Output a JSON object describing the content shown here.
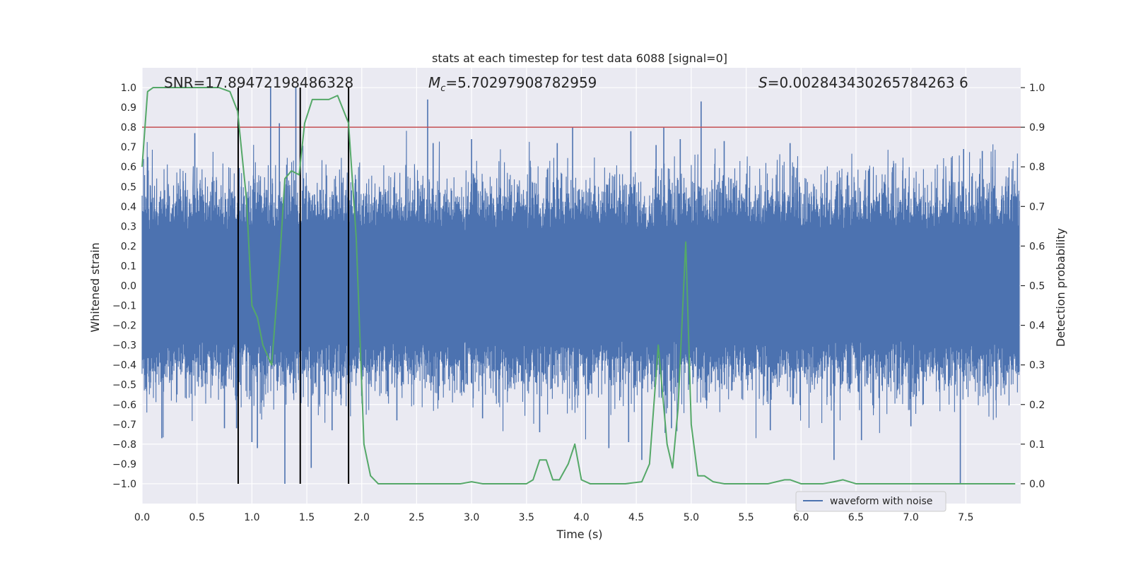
{
  "chart_data": {
    "type": "line",
    "title": "stats at each timestep for test data 6088 [signal=0]",
    "xlabel": "Time (s)",
    "ylabel_left": "Whitened strain",
    "ylabel_right": "Detection probability",
    "xlim": [
      0.0,
      8.0
    ],
    "ylim_left": [
      -1.1,
      1.1
    ],
    "ylim_right": [
      -0.05,
      1.05
    ],
    "xticks": [
      "0.0",
      "0.5",
      "1.0",
      "1.5",
      "2.0",
      "2.5",
      "3.0",
      "3.5",
      "4.0",
      "4.5",
      "5.0",
      "5.5",
      "6.0",
      "6.5",
      "7.0",
      "7.5"
    ],
    "yticks_left": [
      "1.0",
      "0.9",
      "0.8",
      "0.7",
      "0.6",
      "0.5",
      "0.4",
      "0.3",
      "0.2",
      "0.1",
      "0.0",
      "−0.1",
      "−0.2",
      "−0.3",
      "−0.4",
      "−0.5",
      "−0.6",
      "−0.7",
      "−0.8",
      "−0.9",
      "−1.0"
    ],
    "yticks_right": [
      "1.0",
      "0.9",
      "0.8",
      "0.7",
      "0.6",
      "0.5",
      "0.4",
      "0.3",
      "0.2",
      "0.1",
      "0.0"
    ],
    "annotations": {
      "snr": "SNR=17.89472198486328",
      "mc_prefix": "M",
      "mc_sub": "c",
      "mc_value": "=5.70297908782959",
      "s_prefix": "S",
      "s_value": "=0.002843430265784263 6"
    },
    "threshold": 0.9,
    "vertical_markers_time": [
      0.875,
      1.44,
      1.88
    ],
    "strain_series": {
      "name": "waveform with noise",
      "color": "#4c72b0",
      "description_envelope": [
        [
          0.0,
          0.65
        ],
        [
          0.5,
          0.7
        ],
        [
          1.0,
          0.7
        ],
        [
          1.5,
          0.62
        ],
        [
          2.0,
          0.6
        ],
        [
          2.5,
          0.6
        ],
        [
          3.0,
          0.62
        ],
        [
          3.5,
          0.6
        ],
        [
          4.0,
          0.62
        ],
        [
          4.5,
          0.62
        ],
        [
          5.0,
          0.62
        ],
        [
          5.5,
          0.62
        ],
        [
          6.0,
          0.62
        ],
        [
          6.5,
          0.62
        ],
        [
          7.0,
          0.62
        ],
        [
          7.5,
          0.64
        ]
      ],
      "spikes": [
        [
          0.18,
          -0.77
        ],
        [
          0.48,
          0.77
        ],
        [
          0.75,
          -0.72
        ],
        [
          0.86,
          -0.72
        ],
        [
          1.0,
          -0.79
        ],
        [
          1.05,
          -0.82
        ],
        [
          1.17,
          1.0
        ],
        [
          1.25,
          0.82
        ],
        [
          1.3,
          -1.0
        ],
        [
          1.4,
          1.0
        ],
        [
          1.54,
          -0.92
        ],
        [
          1.73,
          -0.73
        ],
        [
          1.88,
          -0.95
        ],
        [
          2.32,
          -0.68
        ],
        [
          2.6,
          0.94
        ],
        [
          2.65,
          0.72
        ],
        [
          3.0,
          0.74
        ],
        [
          3.1,
          -0.67
        ],
        [
          3.62,
          -0.74
        ],
        [
          3.78,
          0.72
        ],
        [
          3.92,
          0.8
        ],
        [
          4.25,
          -0.82
        ],
        [
          4.43,
          -0.79
        ],
        [
          4.45,
          0.78
        ],
        [
          4.55,
          -0.88
        ],
        [
          4.68,
          0.71
        ],
        [
          4.75,
          0.8
        ],
        [
          4.82,
          -0.72
        ],
        [
          4.9,
          0.74
        ],
        [
          5.09,
          0.93
        ],
        [
          5.3,
          0.73
        ],
        [
          5.72,
          -0.73
        ],
        [
          5.9,
          0.72
        ],
        [
          6.3,
          -0.88
        ],
        [
          6.55,
          -0.78
        ],
        [
          7.0,
          -0.71
        ],
        [
          7.45,
          -1.0
        ],
        [
          7.48,
          0.69
        ],
        [
          7.65,
          0.68
        ]
      ]
    },
    "probability_series": {
      "name": "detection probability",
      "color": "#55a868",
      "x": [
        0.0,
        0.05,
        0.1,
        0.2,
        0.3,
        0.4,
        0.5,
        0.6,
        0.7,
        0.8,
        0.87,
        0.95,
        1.0,
        1.05,
        1.1,
        1.18,
        1.25,
        1.3,
        1.36,
        1.43,
        1.48,
        1.55,
        1.62,
        1.7,
        1.78,
        1.88,
        1.95,
        2.02,
        2.08,
        2.15,
        2.2,
        2.3,
        2.5,
        2.7,
        2.9,
        3.0,
        3.1,
        3.3,
        3.5,
        3.56,
        3.62,
        3.68,
        3.74,
        3.8,
        3.88,
        3.94,
        4.0,
        4.08,
        4.2,
        4.4,
        4.55,
        4.62,
        4.7,
        4.78,
        4.83,
        4.88,
        4.95,
        5.0,
        5.06,
        5.12,
        5.2,
        5.3,
        5.5,
        5.7,
        5.85,
        5.9,
        6.0,
        6.2,
        6.3,
        6.38,
        6.5,
        6.7,
        7.0,
        7.3,
        7.5,
        7.7,
        7.95
      ],
      "y": [
        0.8,
        0.99,
        1.0,
        1.0,
        1.0,
        1.0,
        1.0,
        1.0,
        1.0,
        0.99,
        0.94,
        0.72,
        0.45,
        0.42,
        0.35,
        0.3,
        0.55,
        0.77,
        0.79,
        0.78,
        0.91,
        0.97,
        0.97,
        0.97,
        0.98,
        0.91,
        0.62,
        0.1,
        0.02,
        0.0,
        0.0,
        0.0,
        0.0,
        0.0,
        0.0,
        0.005,
        0.0,
        0.0,
        0.0,
        0.01,
        0.06,
        0.06,
        0.01,
        0.01,
        0.05,
        0.1,
        0.01,
        0.0,
        0.0,
        0.0,
        0.005,
        0.05,
        0.35,
        0.1,
        0.04,
        0.19,
        0.61,
        0.15,
        0.02,
        0.02,
        0.005,
        0.0,
        0.0,
        0.0,
        0.01,
        0.01,
        0.0,
        0.0,
        0.005,
        0.01,
        0.0,
        0.0,
        0.0,
        0.0,
        0.0,
        0.0,
        0.0
      ]
    },
    "legend": {
      "label": "waveform with noise",
      "placement": "lower-right"
    },
    "colors": {
      "plot_bg": "#eaeaf2",
      "grid": "#ffffff",
      "threshold": "#c44e52",
      "marker": "#000000"
    }
  }
}
